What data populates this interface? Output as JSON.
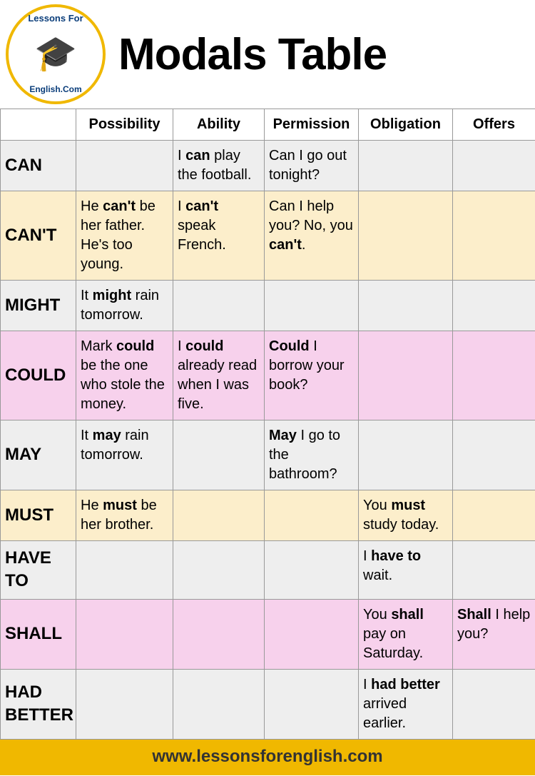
{
  "header": {
    "title": "Modals Table",
    "logo_top": "Lessons For",
    "logo_bottom": "English.Com"
  },
  "table": {
    "columns": [
      "",
      "Possibility",
      "Ability",
      "Permission",
      "Obligation",
      "Offers"
    ],
    "row_colors": [
      "#eeeeee",
      "#fceecb",
      "#eeeeee",
      "#f7d1ec",
      "#eeeeee",
      "#fceecb",
      "#eeeeee",
      "#f7d1ec",
      "#eeeeee"
    ],
    "border_color": "#999999",
    "rows": [
      {
        "modal": "CAN",
        "cells": {
          "ability": {
            "pre": "I ",
            "bold": "can",
            "post": " play the football."
          },
          "permission": {
            "pre": "Can I go out tonight?",
            "bold": "",
            "post": ""
          }
        }
      },
      {
        "modal": "CAN'T",
        "cells": {
          "possibility": {
            "pre": "He ",
            "bold": "can't",
            "post": " be her father. He's too young."
          },
          "ability": {
            "pre": "I ",
            "bold": "can't",
            "post": " speak French."
          },
          "permission": {
            "pre": "Can I help you? No, you ",
            "bold": "can't",
            "post": "."
          }
        }
      },
      {
        "modal": "MIGHT",
        "cells": {
          "possibility": {
            "pre": "It ",
            "bold": "might",
            "post": " rain tomorrow."
          }
        }
      },
      {
        "modal": "COULD",
        "cells": {
          "possibility": {
            "pre": "Mark ",
            "bold": "could",
            "post": " be the one who stole the money."
          },
          "ability": {
            "pre": "I ",
            "bold": "could",
            "post": " already read when I was five."
          },
          "permission": {
            "pre": "",
            "bold": "Could",
            "post": " I borrow your book?"
          }
        }
      },
      {
        "modal": "MAY",
        "cells": {
          "possibility": {
            "pre": "It ",
            "bold": "may",
            "post": " rain tomorrow."
          },
          "permission": {
            "pre": "",
            "bold": "May",
            "post": " I go to the bathroom?"
          }
        }
      },
      {
        "modal": "MUST",
        "cells": {
          "possibility": {
            "pre": "He ",
            "bold": "must",
            "post": " be her brother."
          },
          "obligation": {
            "pre": "You ",
            "bold": "must",
            "post": " study today."
          }
        }
      },
      {
        "modal": "HAVE TO",
        "cells": {
          "obligation": {
            "pre": "I ",
            "bold": "have to",
            "post": " wait."
          }
        }
      },
      {
        "modal": "SHALL",
        "cells": {
          "obligation": {
            "pre": "You ",
            "bold": "shall",
            "post": " pay on Saturday."
          },
          "offers": {
            "pre": "",
            "bold": "Shall",
            "post": " I help you?"
          }
        }
      },
      {
        "modal": "HAD BETTER",
        "cells": {
          "obligation": {
            "pre": "I ",
            "bold": "had better",
            "post": " arrived earlier."
          }
        }
      }
    ]
  },
  "footer": {
    "url": "www.lessonsforenglish.com"
  }
}
